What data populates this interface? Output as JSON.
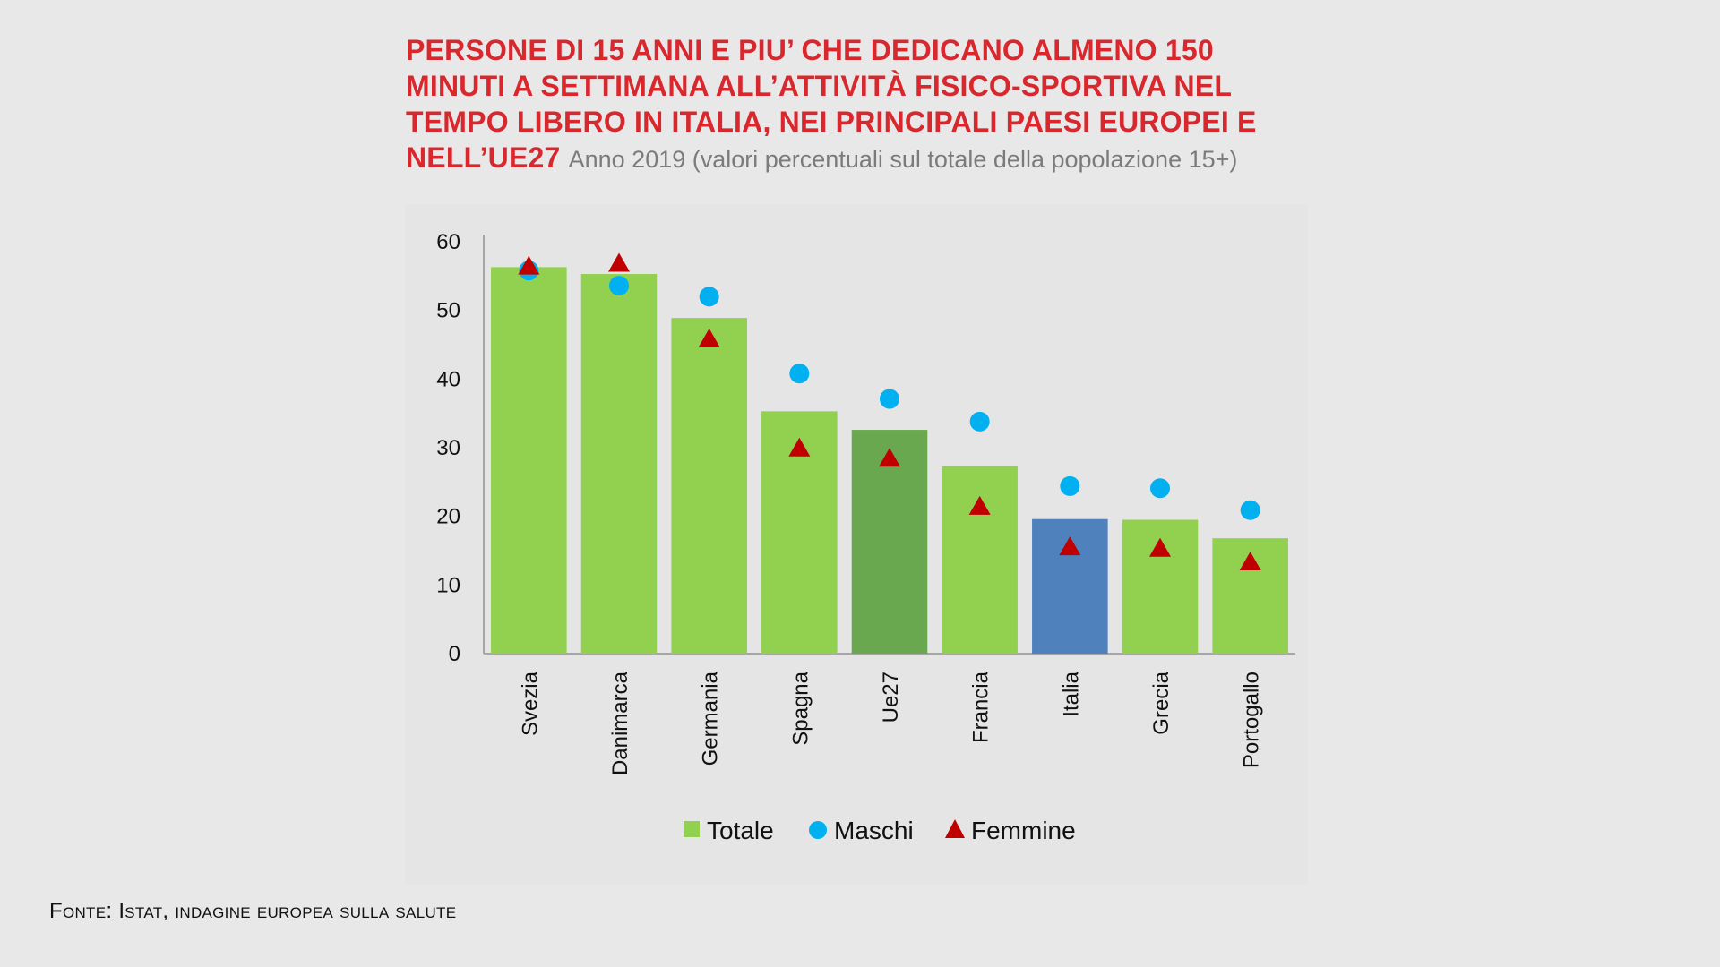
{
  "title_main": "PERSONE DI 15 ANNI E PIU’ CHE DEDICANO ALMENO 150 MINUTI A SETTIMANA ALL’ATTIVITÀ FISICO-SPORTIVA NEL TEMPO LIBERO IN ITALIA, NEI PRINCIPALI PAESI EUROPEI E NELL’UE27",
  "subtitle": "Anno 2019 (valori percentuali sul totale della popolazione 15+)",
  "source": "Fonte: Istat, indagine europea sulla salute",
  "colors": {
    "bar_default": "#92d050",
    "bar_ue27": "#6aa84f",
    "bar_italia": "#4f81bd",
    "maschi": "#00b0f0",
    "femmine": "#c00000",
    "axis": "#a6a6a6"
  },
  "chart_data": {
    "type": "bar",
    "title": "PERSONE DI 15 ANNI E PIU’ CHE DEDICANO ALMENO 150 MINUTI A SETTIMANA ALL’ATTIVITÀ FISICO-SPORTIVA NEL TEMPO LIBERO IN ITALIA, NEI PRINCIPALI PAESI EUROPEI E NELL’UE27",
    "subtitle": "Anno 2019 (valori percentuali sul totale della popolazione 15+)",
    "categories": [
      "Svezia",
      "Danimarca",
      "Germania",
      "Spagna",
      "Ue27",
      "Francia",
      "Italia",
      "Grecia",
      "Portogallo"
    ],
    "series": [
      {
        "name": "Totale",
        "kind": "bar",
        "values": [
          56.3,
          55.3,
          48.9,
          35.3,
          32.6,
          27.3,
          19.6,
          19.5,
          16.8
        ]
      },
      {
        "name": "Maschi",
        "kind": "marker-circle",
        "values": [
          55.8,
          53.6,
          52.0,
          40.8,
          37.1,
          33.8,
          24.4,
          24.1,
          20.9
        ]
      },
      {
        "name": "Femmine",
        "kind": "marker-triangle",
        "values": [
          56.4,
          56.8,
          45.8,
          29.9,
          28.4,
          21.4,
          15.5,
          15.3,
          13.3
        ]
      }
    ],
    "ylim": [
      0,
      60
    ],
    "yticks": [
      0,
      10,
      20,
      30,
      40,
      50,
      60
    ],
    "xlabel": "",
    "ylabel": "",
    "grid": false,
    "legend": "bottom"
  }
}
